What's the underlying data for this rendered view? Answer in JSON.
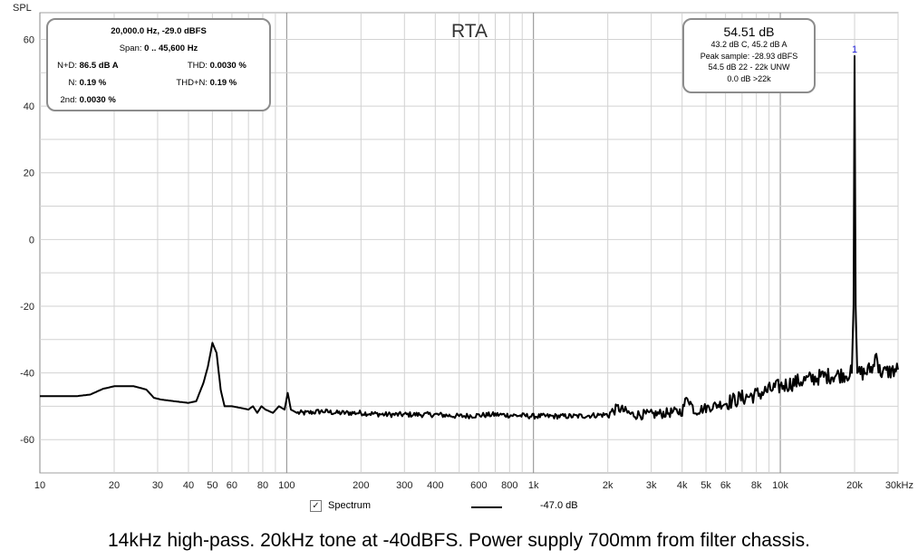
{
  "chart_data": {
    "type": "line",
    "title": "RTA",
    "ylabel": "SPL",
    "xlabel": "",
    "x_scale": "log",
    "xlim": [
      10,
      30000
    ],
    "ylim": [
      -70,
      68
    ],
    "grid": true,
    "y_ticks": [
      60,
      40,
      20,
      0,
      -20,
      -40,
      -60
    ],
    "y_tick_labels": [
      "60",
      "40",
      "20",
      "0",
      "-20",
      "-40",
      "-60"
    ],
    "x_tick_values": [
      10,
      20,
      30,
      40,
      50,
      60,
      80,
      100,
      200,
      300,
      400,
      600,
      800,
      1000,
      2000,
      3000,
      4000,
      5000,
      6000,
      8000,
      10000,
      20000,
      30000
    ],
    "x_tick_labels": [
      "10",
      "20",
      "30",
      "40",
      "50",
      "60",
      "80",
      "100",
      "200",
      "300",
      "400",
      "600",
      "800",
      "1k",
      "2k",
      "3k",
      "4k",
      "5k",
      "6k",
      "8k",
      "10k",
      "20k",
      "30kHz"
    ],
    "series": [
      {
        "name": "Spectrum",
        "color": "#000000",
        "x": [
          10,
          14,
          16,
          18,
          20,
          24,
          27,
          29,
          31,
          35,
          40,
          43,
          46,
          48,
          50,
          52,
          54,
          56,
          60,
          65,
          70,
          73,
          76,
          79,
          82,
          88,
          93,
          98,
          101,
          104,
          110,
          120,
          140,
          160,
          200,
          250,
          300,
          400,
          500,
          700,
          1000,
          1500,
          2000,
          2200,
          2500,
          3000,
          3500,
          4000,
          4200,
          4500,
          5000,
          6000,
          7000,
          8000,
          10000,
          12000,
          15000,
          18000,
          19500,
          19800,
          20000,
          20200,
          20500,
          22000,
          24000,
          24500,
          25000,
          26000,
          28000,
          30000
        ],
        "y": [
          -47,
          -47,
          -46.5,
          -44.8,
          -44,
          -44,
          -45,
          -47.5,
          -48,
          -48.5,
          -49,
          -48.5,
          -43,
          -38,
          -31,
          -34,
          -45,
          -50,
          -50,
          -50.5,
          -51,
          -50,
          -52,
          -50,
          -51,
          -52,
          -50,
          -51,
          -46,
          -51,
          -52,
          -52,
          -51.5,
          -52,
          -52,
          -52.5,
          -52.5,
          -52.5,
          -53,
          -52.5,
          -53,
          -53,
          -52.5,
          -50.5,
          -52.5,
          -52.5,
          -52,
          -51.5,
          -47,
          -51.5,
          -50.5,
          -49,
          -47.5,
          -46.5,
          -44,
          -42.5,
          -41,
          -40.5,
          -40,
          -20,
          55,
          -20,
          -40,
          -40,
          -38,
          -32,
          -39,
          -40,
          -39.5,
          -39
        ]
      }
    ],
    "annotations": [
      {
        "text": "1",
        "x": 20000,
        "y": 55
      }
    ]
  },
  "info_left": {
    "freq_line": "20,000.0 Hz, -29.0 dBFS",
    "span_label": "Span:",
    "span_value": "0 .. 45,600 Hz",
    "nd_label": "N+D:",
    "nd_value": "86.5 dB A",
    "thd_label": "THD:",
    "thd_value": "0.0030 %",
    "n_label": "N:",
    "n_value": "0.19 %",
    "thdn_label": "THD+N:",
    "thdn_value": "0.19 %",
    "second_label": "2nd:",
    "second_value": "0.0030 %"
  },
  "info_right": {
    "level": "54.51 dB",
    "weighted": "43.2 dB C, 45.2 dB A",
    "peak": "Peak sample: -28.93 dBFS",
    "unweighted": "54.5 dB 22 - 22k UNW",
    "above": "0.0 dB >22k"
  },
  "legend": {
    "checkbox": "✓",
    "name": "Spectrum",
    "value": "-47.0 dB"
  },
  "caption": "14kHz high-pass. 20kHz tone at -40dBFS. Power supply 700mm from filter chassis."
}
